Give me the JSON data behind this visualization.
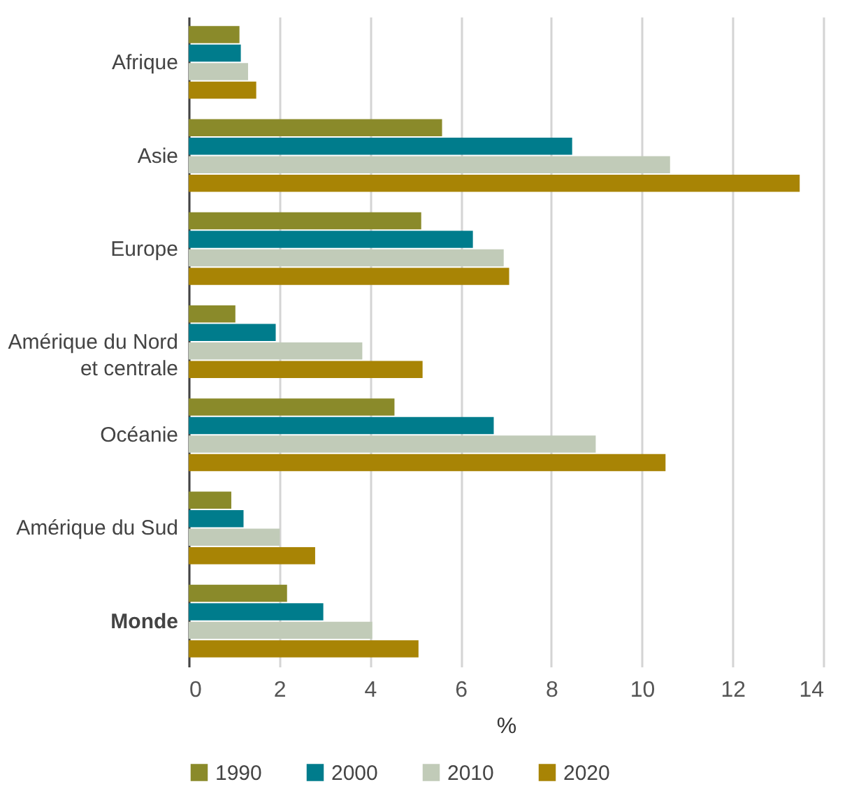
{
  "chart_data": {
    "type": "bar",
    "orientation": "horizontal",
    "xlabel": "%",
    "categories": [
      "Afrique",
      "Asie",
      "Europe",
      "Amérique du Nord\net centrale",
      "Océanie",
      "Amérique du Sud",
      "Monde"
    ],
    "series": [
      {
        "name": "1990",
        "color": "#8a8a2a",
        "values": [
          1.12,
          5.59,
          5.13,
          1.03,
          4.54,
          0.94,
          2.17
        ]
      },
      {
        "name": "2000",
        "color": "#007c8c",
        "values": [
          1.15,
          8.46,
          6.27,
          1.92,
          6.73,
          1.21,
          2.97
        ]
      },
      {
        "name": "2010",
        "color": "#c1cbb8",
        "values": [
          1.31,
          10.62,
          6.95,
          3.83,
          8.98,
          2.01,
          4.05
        ]
      },
      {
        "name": "2020",
        "color": "#a88405",
        "values": [
          1.49,
          13.48,
          7.07,
          5.16,
          10.52,
          2.79,
          5.07
        ]
      }
    ],
    "xlim": [
      0,
      14
    ],
    "xticks": [
      0,
      2,
      4,
      6,
      8,
      10,
      12,
      14
    ],
    "grid": "x",
    "legend": "bottom"
  }
}
